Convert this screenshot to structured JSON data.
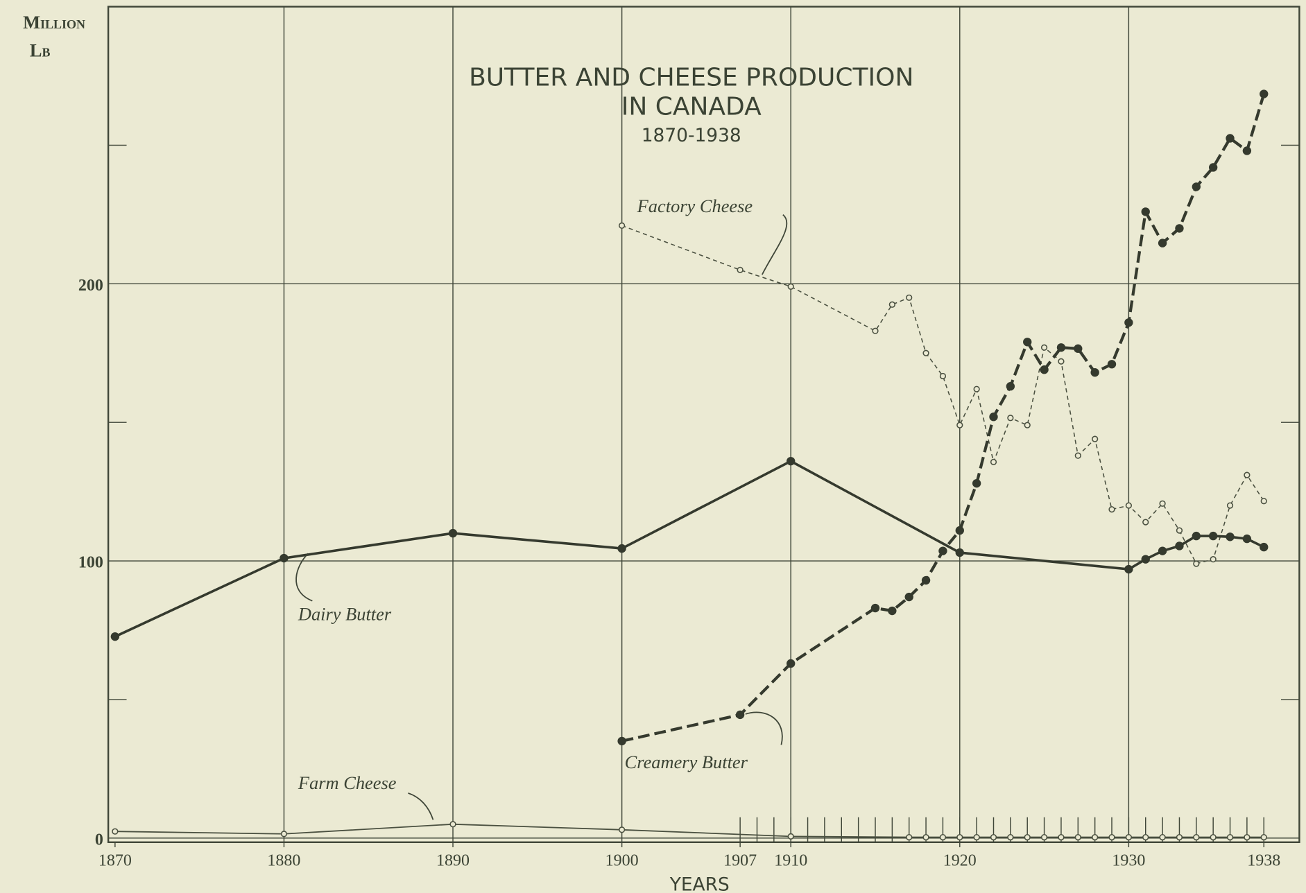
{
  "chart_data": {
    "type": "line",
    "title": [
      "BUTTER AND CHEESE PRODUCTION",
      "IN CANADA"
    ],
    "subtitle": "1870-1938",
    "y_label": [
      "Million",
      "Lb"
    ],
    "x_label": "YEARS",
    "xlim": [
      1869.6,
      1940.1
    ],
    "ylim": [
      -1.5,
      300
    ],
    "xticks": [
      1870,
      1880,
      1890,
      1900,
      1907,
      1910,
      1920,
      1930,
      1938
    ],
    "xgrid": [
      1880,
      1890,
      1900,
      1910,
      1920,
      1930
    ],
    "minor_xticks": [
      1907,
      1908,
      1909,
      1910,
      1911,
      1912,
      1913,
      1914,
      1915,
      1916,
      1917,
      1918,
      1919,
      1920,
      1921,
      1922,
      1923,
      1924,
      1925,
      1926,
      1927,
      1928,
      1929,
      1930,
      1931,
      1932,
      1933,
      1934,
      1935,
      1936,
      1937,
      1938
    ],
    "yticks": [
      0,
      100,
      200
    ],
    "minor_yticks": [
      50,
      150,
      250
    ],
    "grid": true,
    "series": [
      {
        "name": "Factory Cheese",
        "color": "#4a5040",
        "style": "dotted",
        "marker": "open",
        "x": [
          1900,
          1907,
          1910,
          1915,
          1916,
          1917,
          1918,
          1919,
          1920,
          1921,
          1922,
          1923,
          1924,
          1925,
          1926,
          1927,
          1928,
          1929,
          1930,
          1931,
          1932,
          1933,
          1934,
          1935,
          1936,
          1937,
          1938
        ],
        "values": [
          221,
          205,
          199,
          183,
          192.5,
          195,
          175,
          166.7,
          149,
          162,
          135.7,
          151.6,
          149,
          177,
          172,
          138,
          144,
          118.6,
          120,
          114,
          120.7,
          111,
          99,
          100.6,
          120,
          131,
          121.6
        ]
      },
      {
        "name": "Dairy Butter",
        "color": "#353a2e",
        "style": "solid",
        "marker": "filled",
        "x": [
          1870,
          1880,
          1890,
          1900,
          1910,
          1920,
          1930,
          1931,
          1932,
          1933,
          1934,
          1935,
          1936,
          1937,
          1938
        ],
        "values": [
          72.7,
          101,
          110,
          104.5,
          136,
          103,
          97,
          100.6,
          103.6,
          105.4,
          109,
          109,
          108.7,
          108,
          105
        ]
      },
      {
        "name": "Creamery Butter",
        "color": "#353a2e",
        "style": "dashed",
        "marker": "filled",
        "x": [
          1900,
          1907,
          1910,
          1915,
          1916,
          1917,
          1918,
          1919,
          1920,
          1921,
          1922,
          1923,
          1924,
          1925,
          1926,
          1927,
          1928,
          1929,
          1930,
          1931,
          1932,
          1933,
          1934,
          1935,
          1936,
          1937,
          1938
        ],
        "values": [
          35,
          44.5,
          63,
          83,
          82,
          87,
          93,
          103.6,
          111,
          128,
          152,
          163,
          179,
          169,
          177,
          176.6,
          168,
          171,
          186,
          226,
          214.7,
          220,
          235,
          242,
          252.5,
          248,
          268.5
        ]
      },
      {
        "name": "Farm Cheese",
        "color": "#4a5040",
        "style": "thin",
        "marker": "open",
        "x": [
          1870,
          1880,
          1890,
          1900,
          1910,
          1917,
          1918,
          1919,
          1920,
          1921,
          1922,
          1923,
          1924,
          1925,
          1926,
          1927,
          1928,
          1929,
          1930,
          1931,
          1932,
          1933,
          1934,
          1935,
          1936,
          1937,
          1938
        ],
        "values": [
          2.4,
          1.5,
          5,
          3,
          0.6,
          0.3,
          0.3,
          0.3,
          0.3,
          0.3,
          0.3,
          0.3,
          0.3,
          0.3,
          0.3,
          0.3,
          0.3,
          0.3,
          0.3,
          0.3,
          0.3,
          0.3,
          0.3,
          0.3,
          0.3,
          0.3,
          0.3
        ]
      }
    ]
  }
}
